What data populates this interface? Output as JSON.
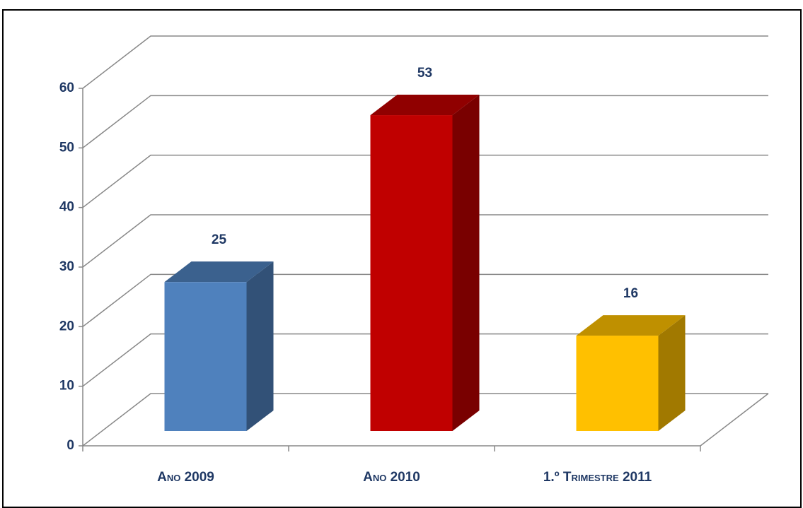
{
  "chart_data": {
    "type": "bar3d",
    "categories": [
      "Ano 2009",
      "Ano 2010",
      "1.º Trimestre 2011"
    ],
    "values": [
      25,
      53,
      16
    ],
    "colors": [
      "#4f81bd",
      "#c00000",
      "#ffc000"
    ],
    "ylim": [
      0,
      60
    ],
    "yticks": [
      0,
      10,
      20,
      30,
      40,
      50,
      60
    ],
    "grid": true
  }
}
